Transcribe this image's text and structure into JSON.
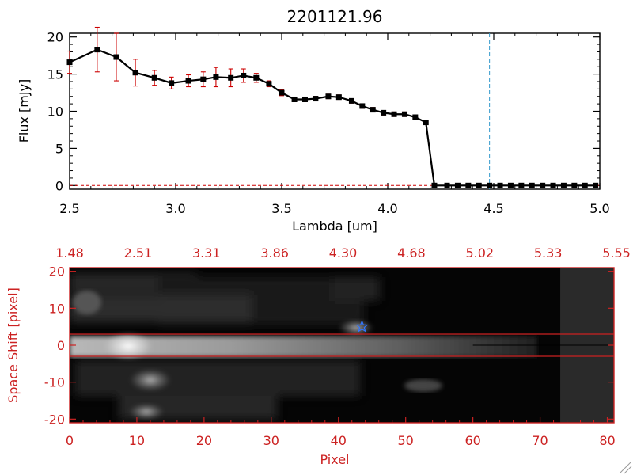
{
  "chart_data": [
    {
      "type": "line",
      "title": "2201121.96",
      "xlabel": "Lambda [um]",
      "ylabel": "Flux [mJy]",
      "xlim": [
        2.5,
        5.0
      ],
      "ylim": [
        -0.5,
        20.5
      ],
      "x_ticks": [
        "2.5",
        "3.0",
        "3.5",
        "4.0",
        "4.5",
        "5.0"
      ],
      "y_ticks": [
        "0",
        "5",
        "10",
        "15",
        "20"
      ],
      "series": [
        {
          "x": [
            2.5,
            2.63,
            2.72,
            2.81,
            2.9,
            2.98,
            3.06,
            3.13,
            3.19,
            3.26,
            3.32,
            3.38,
            3.44,
            3.5,
            3.56,
            3.61,
            3.66,
            3.72,
            3.77,
            3.83,
            3.88,
            3.93,
            3.98,
            4.03,
            4.08,
            4.13,
            4.18,
            4.22,
            4.28,
            4.33,
            4.38,
            4.43,
            4.48,
            4.53,
            4.58,
            4.63,
            4.68,
            4.73,
            4.78,
            4.83,
            4.88,
            4.93,
            4.98
          ],
          "y": [
            16.6,
            18.3,
            17.3,
            15.2,
            14.5,
            13.8,
            14.1,
            14.3,
            14.6,
            14.5,
            14.8,
            14.5,
            13.7,
            12.5,
            11.6,
            11.6,
            11.7,
            12.0,
            11.9,
            11.4,
            10.7,
            10.2,
            9.8,
            9.6,
            9.6,
            9.2,
            8.5,
            0,
            0,
            0,
            0,
            0,
            0,
            0,
            0,
            0,
            0,
            0,
            0,
            0,
            0,
            0,
            0
          ],
          "yerr": [
            1.5,
            3.0,
            3.2,
            1.8,
            1.0,
            0.8,
            0.8,
            1.0,
            1.3,
            1.2,
            0.9,
            0.6,
            0.4,
            0.4,
            0.3,
            0.3,
            0.3,
            0.3,
            0.3,
            0.3,
            0.3,
            0.3,
            0.3,
            0.3,
            0.3,
            0.3,
            0.3,
            0,
            0,
            0,
            0,
            0,
            0,
            0,
            0,
            0,
            0,
            0,
            0,
            0,
            0,
            0,
            0
          ]
        }
      ],
      "vline_x": 4.48,
      "colors": {
        "line": "#000000",
        "marker": "#000000",
        "error": "#cc0000",
        "vline": "#3399cc"
      }
    },
    {
      "type": "heatmap",
      "xlabel": "Pixel",
      "ylabel": "Space Shift [pixel]",
      "xlim": [
        0,
        81
      ],
      "ylim": [
        -21,
        21
      ],
      "x_ticks": [
        "0",
        "10",
        "20",
        "30",
        "40",
        "50",
        "60",
        "70",
        "80"
      ],
      "y_ticks": [
        "-20",
        "-10",
        "0",
        "10",
        "20"
      ],
      "top_ticks": [
        "1.48",
        "2.51",
        "3.31",
        "3.86",
        "4.30",
        "4.68",
        "5.02",
        "5.33",
        "5.55"
      ],
      "hlines": [
        3,
        -3
      ],
      "center_line": 0,
      "star": {
        "x": 43.5,
        "y": 5
      },
      "masked_from_pixel": 73,
      "colors": {
        "axes": "#cc2222",
        "hline": "#cc2222",
        "star": "#3377ff"
      }
    }
  ]
}
